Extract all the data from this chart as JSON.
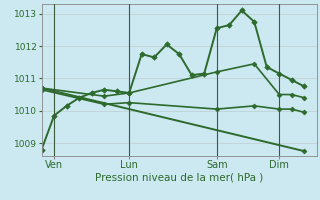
{
  "bg_color": "#cce8f0",
  "grid_color": "#b0b0b0",
  "line_color": "#2d6a2d",
  "marker_color": "#2d6a2d",
  "ylabel_ticks": [
    1009,
    1010,
    1011,
    1012,
    1013
  ],
  "xlabel": "Pression niveau de la mer( hPa )",
  "xtick_labels": [
    "Ven",
    "Lun",
    "Sam",
    "Dim"
  ],
  "xtick_positions": [
    1,
    7,
    14,
    19
  ],
  "vline_positions": [
    1,
    7,
    14,
    19
  ],
  "xlim": [
    0,
    22
  ],
  "ylim": [
    1008.6,
    1013.3
  ],
  "line1": {
    "x": [
      0,
      1,
      2,
      3,
      4,
      5,
      6,
      7,
      8,
      9,
      10,
      11,
      12,
      13,
      14,
      15,
      16,
      17,
      18,
      19,
      20,
      21
    ],
    "y": [
      1008.8,
      1009.85,
      1010.15,
      1010.4,
      1010.55,
      1010.65,
      1010.6,
      1010.55,
      1011.75,
      1011.65,
      1012.05,
      1011.75,
      1011.1,
      1011.15,
      1012.55,
      1012.65,
      1013.1,
      1012.75,
      1011.35,
      1011.15,
      1010.95,
      1010.75
    ],
    "marker": "D",
    "markersize": 2.8,
    "linewidth": 1.4
  },
  "line2": {
    "x": [
      0,
      5,
      7,
      14,
      17,
      19,
      20,
      21
    ],
    "y": [
      1010.7,
      1010.45,
      1010.55,
      1011.2,
      1011.45,
      1010.5,
      1010.5,
      1010.4
    ],
    "marker": "D",
    "markersize": 2.5,
    "linewidth": 1.2
  },
  "line3": {
    "x": [
      0,
      5,
      7,
      14,
      17,
      19,
      20,
      21
    ],
    "y": [
      1010.65,
      1010.2,
      1010.25,
      1010.05,
      1010.15,
      1010.05,
      1010.05,
      1009.95
    ],
    "marker": "D",
    "markersize": 2.5,
    "linewidth": 1.2
  },
  "line4": {
    "x": [
      0,
      21
    ],
    "y": [
      1010.7,
      1008.75
    ],
    "marker": "D",
    "markersize": 2.5,
    "linewidth": 1.4
  }
}
